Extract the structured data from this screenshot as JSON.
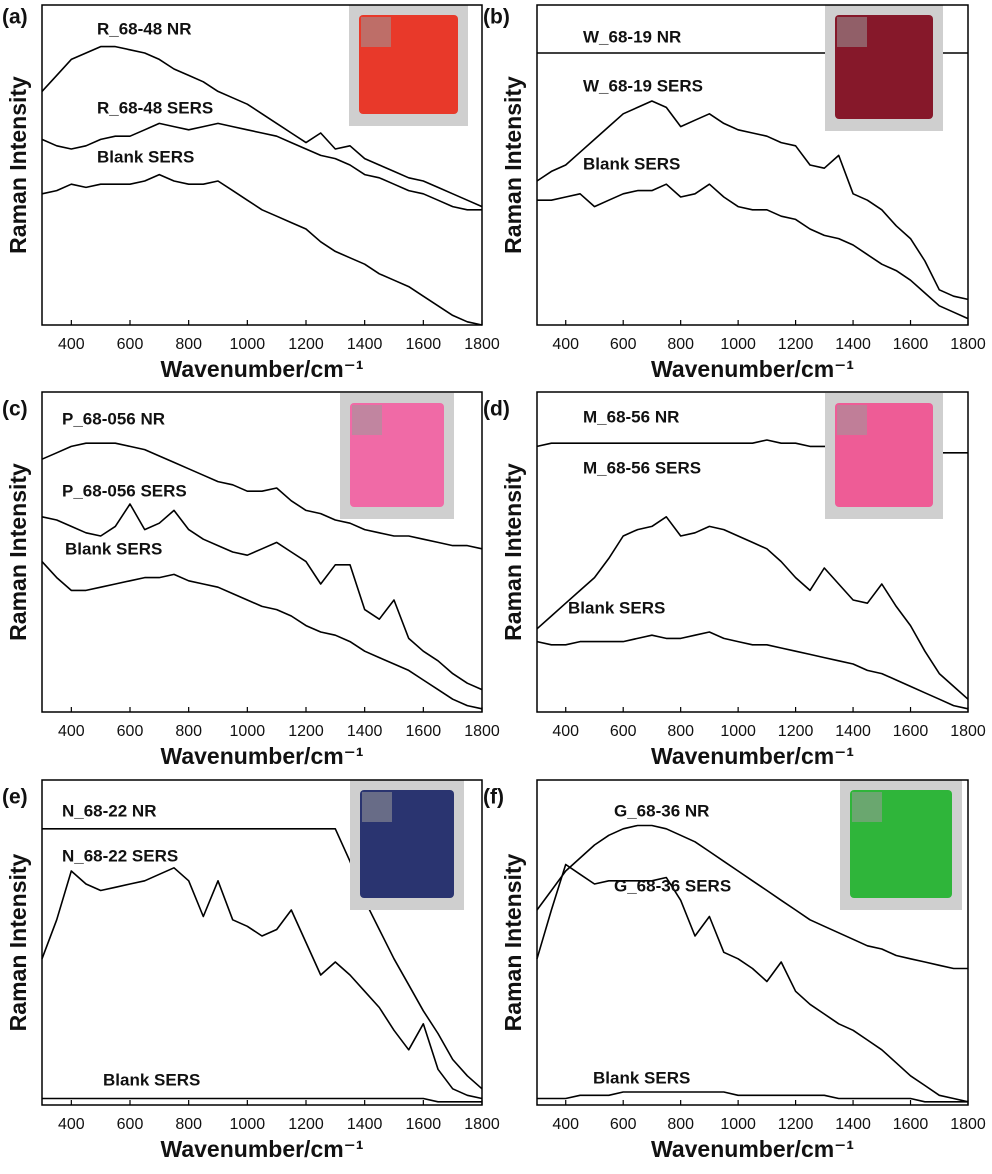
{
  "chart_data": [
    {
      "type": "line",
      "label": "(a)",
      "ylabel": "Raman Intensity",
      "xlabel": "Wavenumber/cm⁻¹",
      "xlim": [
        300,
        1800
      ],
      "xticks": [
        400,
        600,
        800,
        1000,
        1200,
        1400,
        1600,
        1800
      ],
      "ylim": [
        0,
        100
      ],
      "x": [
        300,
        350,
        400,
        450,
        500,
        550,
        600,
        650,
        700,
        750,
        800,
        850,
        900,
        950,
        1000,
        1050,
        1100,
        1150,
        1200,
        1250,
        1300,
        1350,
        1400,
        1450,
        1500,
        1550,
        1600,
        1650,
        1700,
        1750,
        1800
      ],
      "series": [
        {
          "name": "R_68-48 NR",
          "color": "#000000",
          "values": [
            73,
            78,
            83,
            85,
            87,
            87,
            86,
            85,
            83,
            80,
            78,
            76,
            73,
            71,
            69,
            66,
            63,
            60,
            57,
            60,
            55,
            56,
            52,
            50,
            48,
            46,
            45,
            43,
            41,
            39,
            37
          ]
        },
        {
          "name": "R_68-48 SERS",
          "color": "#000000",
          "values": [
            58,
            56,
            55,
            56,
            58,
            59,
            59,
            61,
            63,
            62,
            61,
            62,
            63,
            62,
            61,
            60,
            59,
            57,
            55,
            53,
            52,
            50,
            47,
            46,
            44,
            42,
            41,
            39,
            37,
            36,
            36
          ]
        },
        {
          "name": "Blank SERS",
          "color": "#000000",
          "values": [
            41,
            42,
            44,
            43,
            44,
            44,
            44,
            45,
            47,
            45,
            44,
            44,
            45,
            42,
            39,
            36,
            34,
            32,
            30,
            26,
            23,
            21,
            19,
            16,
            14,
            12,
            9,
            6,
            3,
            1,
            0
          ]
        }
      ]
    },
    {
      "type": "line",
      "label": "(b)",
      "ylabel": "Raman Intensity",
      "xlabel": "Wavenumber/cm⁻¹",
      "xlim": [
        300,
        1800
      ],
      "xticks": [
        400,
        600,
        800,
        1000,
        1200,
        1400,
        1600,
        1800
      ],
      "ylim": [
        0,
        100
      ],
      "x": [
        300,
        350,
        400,
        450,
        500,
        550,
        600,
        650,
        700,
        750,
        800,
        850,
        900,
        950,
        1000,
        1050,
        1100,
        1150,
        1200,
        1250,
        1300,
        1350,
        1400,
        1450,
        1500,
        1550,
        1600,
        1650,
        1700,
        1750,
        1800
      ],
      "series": [
        {
          "name": "W_68-19 NR",
          "color": "#000000",
          "values": [
            85,
            85,
            85,
            85,
            85,
            85,
            85,
            85,
            85,
            85,
            85,
            85,
            85,
            85,
            85,
            85,
            85,
            85,
            85,
            85,
            85,
            85,
            85,
            85,
            85,
            85,
            85,
            85,
            85,
            85,
            85
          ]
        },
        {
          "name": "W_68-19 SERS",
          "color": "#000000",
          "values": [
            45,
            48,
            50,
            54,
            58,
            62,
            66,
            68,
            70,
            68,
            62,
            64,
            66,
            63,
            61,
            60,
            59,
            57,
            56,
            50,
            49,
            53,
            41,
            39,
            36,
            31,
            27,
            20,
            11,
            9,
            8
          ]
        },
        {
          "name": "Blank SERS",
          "color": "#000000",
          "values": [
            39,
            39,
            40,
            41,
            37,
            39,
            41,
            42,
            42,
            44,
            40,
            41,
            44,
            40,
            37,
            36,
            36,
            34,
            33,
            30,
            28,
            27,
            25,
            22,
            19,
            17,
            14,
            10,
            6,
            4,
            2
          ]
        }
      ]
    },
    {
      "type": "line",
      "label": "(c)",
      "ylabel": "Raman Intensity",
      "xlabel": "Wavenumber/cm⁻¹",
      "xlim": [
        300,
        1800
      ],
      "xticks": [
        400,
        600,
        800,
        1000,
        1200,
        1400,
        1600,
        1800
      ],
      "ylim": [
        0,
        100
      ],
      "x": [
        300,
        350,
        400,
        450,
        500,
        550,
        600,
        650,
        700,
        750,
        800,
        850,
        900,
        950,
        1000,
        1050,
        1100,
        1150,
        1200,
        1250,
        1300,
        1350,
        1400,
        1450,
        1500,
        1550,
        1600,
        1650,
        1700,
        1750,
        1800
      ],
      "series": [
        {
          "name": "P_68-056 NR",
          "color": "#000000",
          "values": [
            79,
            81,
            83,
            84,
            84,
            84,
            83,
            82,
            80,
            78,
            76,
            74,
            72,
            71,
            69,
            69,
            70,
            66,
            63,
            62,
            60,
            59,
            57,
            56,
            55,
            55,
            54,
            53,
            52,
            52,
            51
          ]
        },
        {
          "name": "P_68-056 SERS",
          "color": "#000000",
          "values": [
            61,
            60,
            58,
            56,
            55,
            58,
            65,
            57,
            59,
            63,
            57,
            54,
            52,
            50,
            49,
            51,
            53,
            50,
            47,
            40,
            46,
            46,
            32,
            29,
            35,
            23,
            19,
            16,
            12,
            9,
            7
          ]
        },
        {
          "name": "Blank SERS",
          "color": "#000000",
          "values": [
            47,
            42,
            38,
            38,
            39,
            40,
            41,
            42,
            42,
            43,
            41,
            40,
            39,
            37,
            35,
            33,
            32,
            30,
            27,
            25,
            24,
            22,
            19,
            17,
            15,
            13,
            10,
            7,
            4,
            2,
            1
          ]
        }
      ]
    },
    {
      "type": "line",
      "label": "(d)",
      "ylabel": "Raman Intensity",
      "xlabel": "Wavenumber/cm⁻¹",
      "xlim": [
        300,
        1800
      ],
      "xticks": [
        400,
        600,
        800,
        1000,
        1200,
        1400,
        1600,
        1800
      ],
      "ylim": [
        0,
        100
      ],
      "x": [
        300,
        350,
        400,
        450,
        500,
        550,
        600,
        650,
        700,
        750,
        800,
        850,
        900,
        950,
        1000,
        1050,
        1100,
        1150,
        1200,
        1250,
        1300,
        1350,
        1400,
        1450,
        1500,
        1550,
        1600,
        1650,
        1700,
        1750,
        1800
      ],
      "series": [
        {
          "name": "M_68-56 NR",
          "color": "#000000",
          "values": [
            83,
            84,
            84,
            84,
            84,
            84,
            84,
            84,
            84,
            84,
            84,
            84,
            84,
            84,
            84,
            84,
            85,
            84,
            84,
            83,
            83,
            83,
            83,
            82,
            82,
            82,
            82,
            81,
            81,
            81,
            81
          ]
        },
        {
          "name": "M_68-56 SERS",
          "color": "#000000",
          "values": [
            26,
            30,
            34,
            38,
            42,
            48,
            55,
            57,
            58,
            61,
            55,
            56,
            58,
            57,
            55,
            53,
            51,
            47,
            42,
            38,
            45,
            40,
            35,
            34,
            40,
            33,
            27,
            19,
            12,
            8,
            4
          ]
        },
        {
          "name": "Blank SERS",
          "color": "#000000",
          "values": [
            22,
            21,
            21,
            22,
            22,
            22,
            22,
            23,
            24,
            23,
            23,
            24,
            25,
            23,
            22,
            21,
            21,
            20,
            19,
            18,
            17,
            16,
            15,
            13,
            12,
            10,
            8,
            6,
            4,
            2,
            1
          ]
        }
      ]
    },
    {
      "type": "line",
      "label": "(e)",
      "ylabel": "Raman Intensity",
      "xlabel": "Wavenumber/cm⁻¹",
      "xlim": [
        300,
        1800
      ],
      "xticks": [
        400,
        600,
        800,
        1000,
        1200,
        1400,
        1600,
        1800
      ],
      "ylim": [
        0,
        100
      ],
      "x": [
        300,
        350,
        400,
        450,
        500,
        550,
        600,
        650,
        700,
        750,
        800,
        850,
        900,
        950,
        1000,
        1050,
        1100,
        1150,
        1200,
        1250,
        1300,
        1350,
        1400,
        1450,
        1500,
        1550,
        1600,
        1650,
        1700,
        1750,
        1800
      ],
      "series": [
        {
          "name": "N_68-22 NR",
          "color": "#000000",
          "values": [
            85,
            85,
            85,
            85,
            85,
            85,
            85,
            85,
            85,
            85,
            85,
            85,
            85,
            85,
            85,
            85,
            85,
            85,
            85,
            85,
            85,
            75,
            63,
            54,
            45,
            37,
            29,
            22,
            14,
            9,
            5
          ]
        },
        {
          "name": "N_68-22 SERS",
          "color": "#000000",
          "values": [
            45,
            57,
            72,
            68,
            66,
            67,
            68,
            69,
            71,
            73,
            69,
            58,
            69,
            57,
            55,
            52,
            54,
            60,
            50,
            40,
            44,
            40,
            35,
            30,
            23,
            17,
            25,
            11,
            5,
            3,
            2
          ]
        },
        {
          "name": "Blank SERS",
          "color": "#000000",
          "values": [
            2,
            2,
            2,
            2,
            2,
            2,
            2,
            2,
            2,
            2,
            2,
            2,
            2,
            2,
            2,
            2,
            2,
            2,
            2,
            2,
            2,
            2,
            2,
            2,
            2,
            2,
            2,
            1,
            1,
            1,
            1
          ]
        }
      ]
    },
    {
      "type": "line",
      "label": "(f)",
      "ylabel": "Raman Intensity",
      "xlabel": "Wavenumber/cm⁻¹",
      "xlim": [
        300,
        1800
      ],
      "xticks": [
        400,
        600,
        800,
        1000,
        1200,
        1400,
        1600,
        1800
      ],
      "ylim": [
        0,
        100
      ],
      "x": [
        300,
        350,
        400,
        450,
        500,
        550,
        600,
        650,
        700,
        750,
        800,
        850,
        900,
        950,
        1000,
        1050,
        1100,
        1150,
        1200,
        1250,
        1300,
        1350,
        1400,
        1450,
        1500,
        1550,
        1600,
        1650,
        1700,
        1750,
        1800
      ],
      "series": [
        {
          "name": "G_68-36 NR",
          "color": "#000000",
          "values": [
            60,
            66,
            72,
            76,
            80,
            83,
            85,
            86,
            86,
            85,
            83,
            81,
            78,
            75,
            72,
            69,
            66,
            63,
            60,
            57,
            55,
            53,
            51,
            49,
            48,
            46,
            45,
            44,
            43,
            42,
            42
          ]
        },
        {
          "name": "G_68-36 SERS",
          "color": "#000000",
          "values": [
            45,
            60,
            74,
            71,
            68,
            69,
            69,
            69,
            69,
            70,
            63,
            52,
            58,
            47,
            45,
            42,
            38,
            44,
            35,
            31,
            28,
            25,
            23,
            20,
            17,
            13,
            9,
            6,
            3,
            2,
            1
          ]
        },
        {
          "name": "Blank SERS",
          "color": "#000000",
          "values": [
            2,
            2,
            2,
            3,
            3,
            3,
            4,
            4,
            4,
            4,
            4,
            4,
            4,
            4,
            3,
            3,
            3,
            3,
            3,
            3,
            3,
            2,
            2,
            2,
            2,
            2,
            2,
            1,
            1,
            1,
            1
          ]
        }
      ]
    }
  ]
}
